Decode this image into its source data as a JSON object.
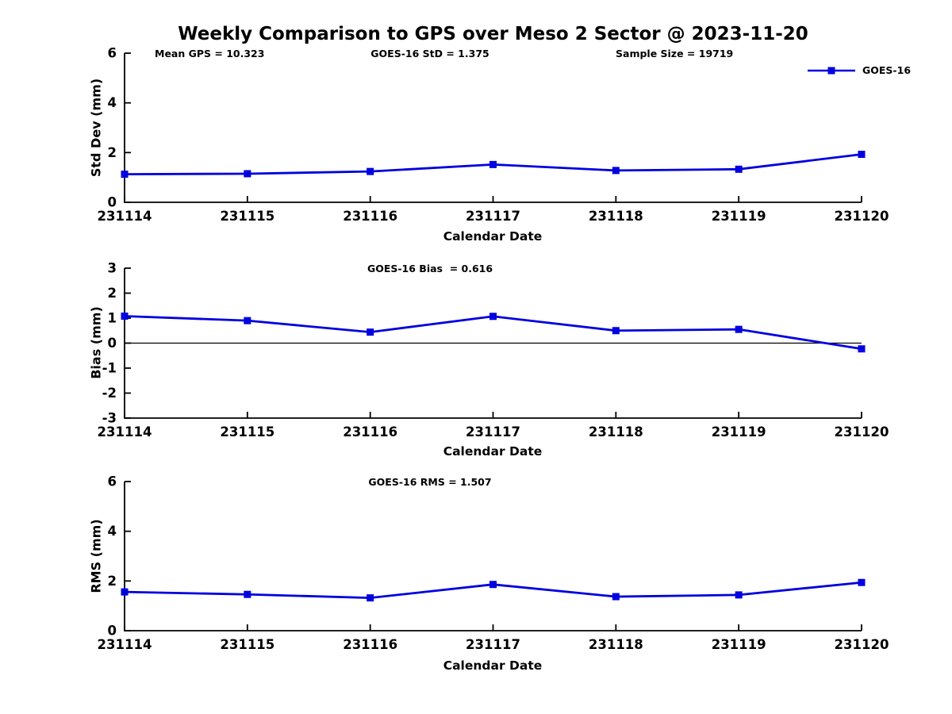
{
  "figure": {
    "title": "Weekly Comparison to GPS over Meso 2 Sector @ 2023-11-20",
    "series_color": "#0000e0",
    "axis_color": "#000000",
    "legend": {
      "label": "GOES-16",
      "marker": "square-icon"
    }
  },
  "chart_data": [
    {
      "type": "line",
      "title": "",
      "annotations": [
        "Mean GPS = 10.323",
        "GOES-16 StD = 1.375",
        "Sample Size = 19719"
      ],
      "categories": [
        "231114",
        "231115",
        "231116",
        "231117",
        "231118",
        "231119",
        "231120"
      ],
      "xlabel": "Calendar Date",
      "ylabel": "Std Dev (mm)",
      "ylim": [
        0,
        6
      ],
      "yticks": [
        0,
        2,
        4,
        6
      ],
      "grid": false,
      "zero_line": false,
      "legend_position": "top-right-inside",
      "series": [
        {
          "name": "GOES-16",
          "color": "#0000e0",
          "marker": "square",
          "values": [
            1.13,
            1.15,
            1.24,
            1.52,
            1.28,
            1.33,
            1.93
          ]
        }
      ]
    },
    {
      "type": "line",
      "title": "GOES-16 Bias  = 0.616",
      "annotations": [],
      "categories": [
        "231114",
        "231115",
        "231116",
        "231117",
        "231118",
        "231119",
        "231120"
      ],
      "xlabel": "Calendar Date",
      "ylabel": "Bias (mm)",
      "ylim": [
        -3,
        3
      ],
      "yticks": [
        -3,
        -2,
        -1,
        0,
        1,
        2,
        3
      ],
      "grid": false,
      "zero_line": true,
      "series": [
        {
          "name": "GOES-16",
          "color": "#0000e0",
          "marker": "square",
          "values": [
            1.08,
            0.9,
            0.44,
            1.07,
            0.5,
            0.55,
            -0.23
          ]
        }
      ]
    },
    {
      "type": "line",
      "title": "GOES-16 RMS = 1.507",
      "annotations": [],
      "categories": [
        "231114",
        "231115",
        "231116",
        "231117",
        "231118",
        "231119",
        "231120"
      ],
      "xlabel": "Calendar Date",
      "ylabel": "RMS (mm)",
      "ylim": [
        0,
        6
      ],
      "yticks": [
        0,
        2,
        4,
        6
      ],
      "grid": false,
      "zero_line": false,
      "series": [
        {
          "name": "GOES-16",
          "color": "#0000e0",
          "marker": "square",
          "values": [
            1.56,
            1.46,
            1.32,
            1.86,
            1.37,
            1.44,
            1.94
          ]
        }
      ]
    }
  ]
}
